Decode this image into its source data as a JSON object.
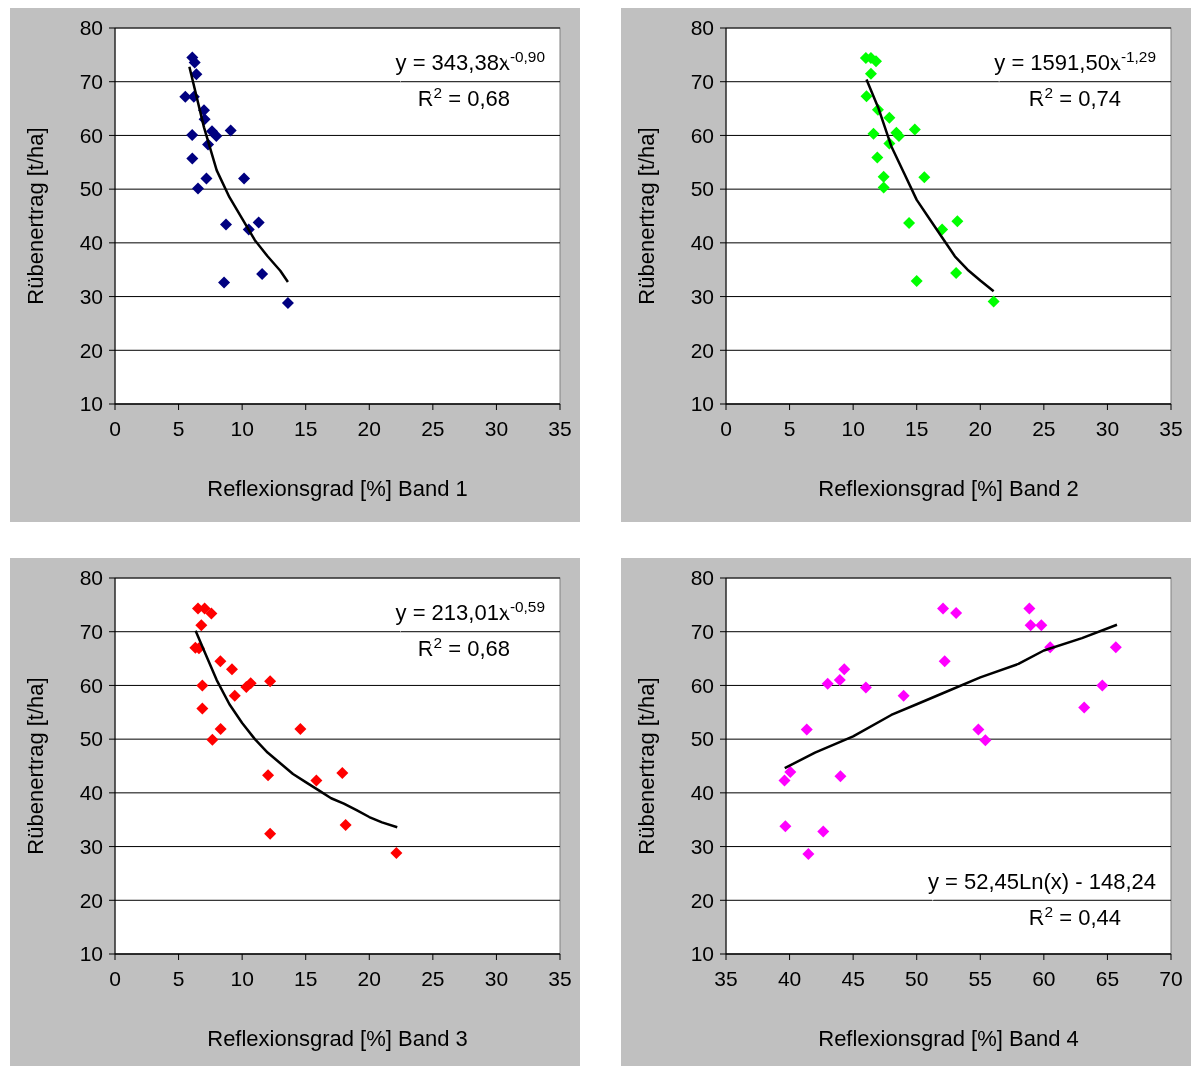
{
  "chart_data": [
    {
      "type": "scatter",
      "xlabel": "Reflexionsgrad [%] Band 1",
      "ylabel": "Rübenertrag [t/ha]",
      "xlim": [
        0,
        35
      ],
      "xticks": [
        0,
        5,
        10,
        15,
        20,
        25,
        30,
        35
      ],
      "ylim": [
        10,
        80
      ],
      "yticks": [
        10,
        20,
        30,
        40,
        50,
        60,
        70,
        80
      ],
      "grid": "y",
      "annotations": [
        "y = 343,38x$^{-0,90}$",
        "R$^{2}$ = 0,68"
      ],
      "series": [
        {
          "marker": "diamond",
          "color": "#000080",
          "x": [
            6.08,
            6.27,
            6.4,
            5.53,
            6.2,
            7.0,
            7.05,
            6.07,
            7.63,
            7.97,
            9.1,
            7.32,
            6.08,
            7.19,
            10.15,
            6.53,
            8.73,
            11.3,
            10.52,
            8.58,
            11.57,
            13.6
          ],
          "values": [
            74.5,
            73.6,
            71.4,
            67.2,
            67.2,
            64.7,
            63,
            60.1,
            60.8,
            59.9,
            60.9,
            58.3,
            55.7,
            52,
            52,
            50.1,
            43.4,
            43.8,
            42.5,
            32.6,
            34.2,
            28.8
          ]
        },
        {
          "type": "line",
          "color": "#000000",
          "x": [
            5.85,
            7,
            8,
            9,
            10,
            11,
            12,
            13,
            13.6
          ],
          "values": [
            72.8,
            61.5,
            53.5,
            48.5,
            44.5,
            40.5,
            37.5,
            34.8,
            32.7
          ]
        }
      ]
    },
    {
      "type": "scatter",
      "xlabel": "Reflexionsgrad [%] Band 2",
      "ylabel": "Rübenertrag [t/ha]",
      "xlim": [
        0,
        35
      ],
      "xticks": [
        0,
        5,
        10,
        15,
        20,
        25,
        30,
        35
      ],
      "ylim": [
        10,
        80
      ],
      "yticks": [
        10,
        20,
        30,
        40,
        50,
        60,
        70,
        80
      ],
      "grid": "y",
      "annotations": [
        "y = 1591,50x$^{-1,29}$",
        "R$^{2}$ = 0,74"
      ],
      "series": [
        {
          "marker": "diamond",
          "color": "#00ff00",
          "x": [
            11.0,
            11.4,
            11.8,
            11.4,
            11.05,
            11.95,
            12.85,
            11.6,
            13.4,
            13.6,
            14.85,
            12.85,
            11.9,
            12.4,
            15.6,
            12.4,
            14.4,
            18.2,
            17.0,
            15.0,
            18.1,
            21.05
          ],
          "values": [
            74.4,
            74.4,
            73.8,
            71.5,
            67.3,
            64.8,
            63.3,
            60.3,
            60.5,
            59.9,
            61.1,
            58.5,
            55.9,
            52.3,
            52.2,
            50.3,
            43.7,
            44,
            42.5,
            32.9,
            34.4,
            29.1
          ]
        },
        {
          "type": "line",
          "color": "#000000",
          "x": [
            11.05,
            12,
            13,
            14,
            15,
            16,
            17,
            18,
            19,
            20,
            21.05
          ],
          "values": [
            70.4,
            65,
            58,
            53,
            48,
            44.5,
            41,
            37.5,
            35,
            33,
            31
          ]
        }
      ]
    },
    {
      "type": "scatter",
      "xlabel": "Reflexionsgrad [%] Band 3",
      "ylabel": "Rübenertrag [t/ha]",
      "xlim": [
        0,
        35
      ],
      "xticks": [
        0,
        5,
        10,
        15,
        20,
        25,
        30,
        35
      ],
      "ylim": [
        10,
        80
      ],
      "yticks": [
        10,
        20,
        30,
        40,
        50,
        60,
        70,
        80
      ],
      "grid": "y",
      "annotations": [
        "y = 213,01x$^{-0,59}$",
        "R$^{2}$ = 0,68"
      ],
      "series": [
        {
          "marker": "diamond",
          "color": "#ff0000",
          "x": [
            6.53,
            7.05,
            7.58,
            6.79,
            6.32,
            6.6,
            8.29,
            9.2,
            6.87,
            10.33,
            10.67,
            12.2,
            9.42,
            6.87,
            8.31,
            14.58,
            7.66,
            12.04,
            17.88,
            15.84,
            12.2,
            18.14,
            22.13
          ],
          "values": [
            74.3,
            74.3,
            73.4,
            71.2,
            67,
            66.9,
            64.5,
            63,
            60,
            59.7,
            60.4,
            60.8,
            58.1,
            55.7,
            51.9,
            51.9,
            49.9,
            43.3,
            43.7,
            42.3,
            32.4,
            34,
            28.8
          ]
        },
        {
          "type": "line",
          "color": "#000000",
          "x": [
            6.34,
            7,
            8,
            9,
            10,
            11,
            12,
            13,
            14,
            15,
            16,
            17,
            18,
            19,
            20,
            21,
            22.2
          ],
          "values": [
            70.2,
            66.5,
            61,
            56.5,
            53,
            50,
            47.5,
            45.5,
            43.5,
            42,
            40.5,
            39,
            38,
            36.8,
            35.5,
            34.5,
            33.6
          ]
        }
      ]
    },
    {
      "type": "scatter",
      "xlabel": "Reflexionsgrad [%] Band 4",
      "ylabel": "Rübenertrag [t/ha]",
      "xlim": [
        35,
        70
      ],
      "xticks": [
        35,
        40,
        45,
        50,
        55,
        60,
        65,
        70
      ],
      "ylim": [
        10,
        80
      ],
      "yticks": [
        10,
        20,
        30,
        40,
        50,
        60,
        70,
        80
      ],
      "grid": "y",
      "annotations": [
        "y = 52,45Ln(x) - 148,24",
        "R$^{2}$ = 0,44"
      ],
      "series": [
        {
          "marker": "diamond",
          "color": "#ff00ff",
          "x": [
            52.07,
            53.1,
            58.86,
            58.96,
            59.8,
            60.5,
            65.66,
            52.2,
            44.3,
            43.0,
            43.95,
            46.0,
            48.97,
            64.6,
            63.17,
            41.35,
            54.85,
            55.4,
            39.6,
            40.06,
            44.0,
            39.67,
            42.65,
            41.48
          ],
          "values": [
            74.3,
            73.5,
            74.3,
            71.2,
            71.2,
            67.1,
            67.1,
            64.5,
            63,
            60.3,
            61,
            59.6,
            58.1,
            60,
            55.9,
            51.8,
            51.8,
            49.8,
            42.3,
            43.9,
            43.1,
            33.8,
            32.8,
            28.6
          ]
        },
        {
          "type": "line",
          "color": "#000000",
          "x": [
            39.62,
            42,
            45,
            48,
            50,
            52,
            55,
            58,
            60,
            63,
            65.75
          ],
          "values": [
            44.6,
            47.5,
            50.5,
            54.5,
            56.5,
            58.5,
            61.5,
            64,
            66.5,
            68.8,
            71.3
          ]
        }
      ]
    }
  ]
}
